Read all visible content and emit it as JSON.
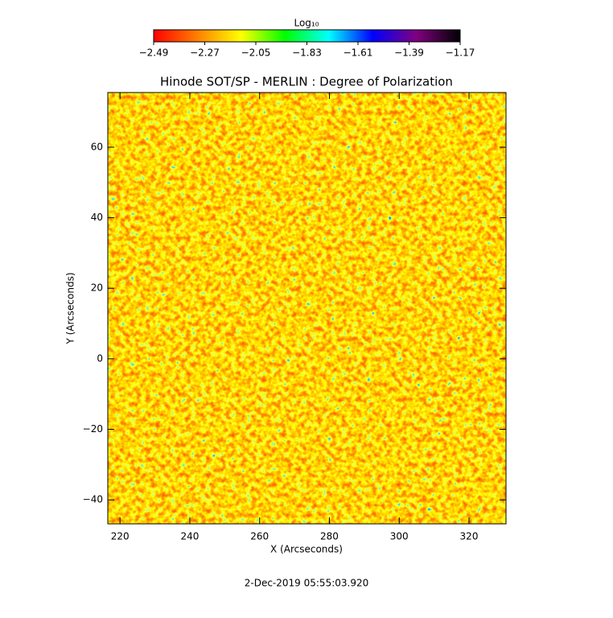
{
  "chart_data": {
    "type": "heatmap",
    "title": "Hinode SOT/SP - MERLIN : Degree of Polarization",
    "x_label": "X (Arcseconds)",
    "y_label": "Y (Arcseconds)",
    "xlim": [
      216.5,
      330.6
    ],
    "ylim": [
      -46.8,
      75.5
    ],
    "xticks": [
      220,
      240,
      260,
      280,
      300,
      320
    ],
    "yticks": [
      {
        "value": -40,
        "label": "−40"
      },
      {
        "value": -20,
        "label": "−20"
      },
      0,
      20,
      40,
      60
    ],
    "colorbar": {
      "label": "Log₁₀",
      "lim": [
        -2.49,
        -1.17
      ],
      "colors": [
        "#ff0000",
        "#ff8000",
        "#ffff00",
        "#00ff00",
        "#00ffff",
        "#0000ff",
        "#800080",
        "#000000"
      ],
      "ticks": [
        {
          "value": -2.49,
          "label": "−2.49"
        },
        {
          "value": -2.27,
          "label": "−2.27"
        },
        {
          "value": -2.05,
          "label": "−2.05"
        },
        {
          "value": -1.83,
          "label": "−1.83"
        },
        {
          "value": -1.61,
          "label": "−1.61"
        },
        {
          "value": -1.39,
          "label": "−1.39"
        },
        {
          "value": -1.17,
          "label": "−1.17"
        }
      ]
    },
    "footnote": "2-Dec-2019 05:55:03.920"
  }
}
